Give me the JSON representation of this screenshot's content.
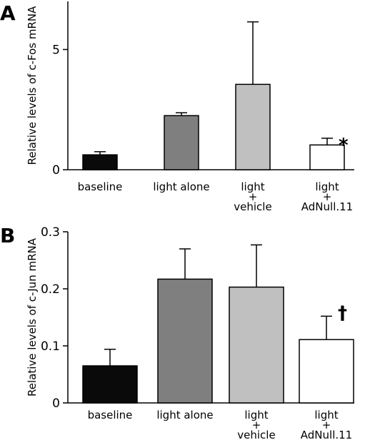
{
  "chart_data": [
    {
      "type": "bar",
      "panel_label": "A",
      "ylabel": "Relative levels of c-Fos mRNA",
      "xlabel": "",
      "ylim": [
        0,
        7
      ],
      "yticks": [
        "0",
        "5"
      ],
      "ytick_values": [
        0,
        5
      ],
      "categories": [
        [
          "baseline"
        ],
        [
          "light alone"
        ],
        [
          "light",
          "+",
          "vehicle"
        ],
        [
          "light",
          "+",
          "AdNull.11"
        ]
      ],
      "values": [
        0.62,
        2.25,
        3.55,
        1.03
      ],
      "errors": [
        0.13,
        0.12,
        2.6,
        0.28
      ],
      "colors": [
        "#0a0a0a",
        "#7f7f7f",
        "#c0c0c0",
        "#ffffff"
      ],
      "annotations": [
        {
          "category_index": 3,
          "text": "*"
        }
      ]
    },
    {
      "type": "bar",
      "panel_label": "B",
      "ylabel": "Relative levels of c-Jun mRNA",
      "xlabel": "",
      "ylim": [
        0,
        0.3
      ],
      "yticks": [
        "0",
        "0.1",
        "0.2",
        "0.3"
      ],
      "ytick_values": [
        0,
        0.1,
        0.2,
        0.3
      ],
      "categories": [
        [
          "baseline"
        ],
        [
          "light alone"
        ],
        [
          "light",
          "+",
          "vehicle"
        ],
        [
          "light",
          "+",
          "AdNull.11"
        ]
      ],
      "values": [
        0.065,
        0.217,
        0.203,
        0.111
      ],
      "errors": [
        0.029,
        0.053,
        0.074,
        0.041
      ],
      "colors": [
        "#0a0a0a",
        "#7f7f7f",
        "#c0c0c0",
        "#ffffff"
      ],
      "annotations": [
        {
          "category_index": 3,
          "text": "†"
        }
      ]
    }
  ]
}
